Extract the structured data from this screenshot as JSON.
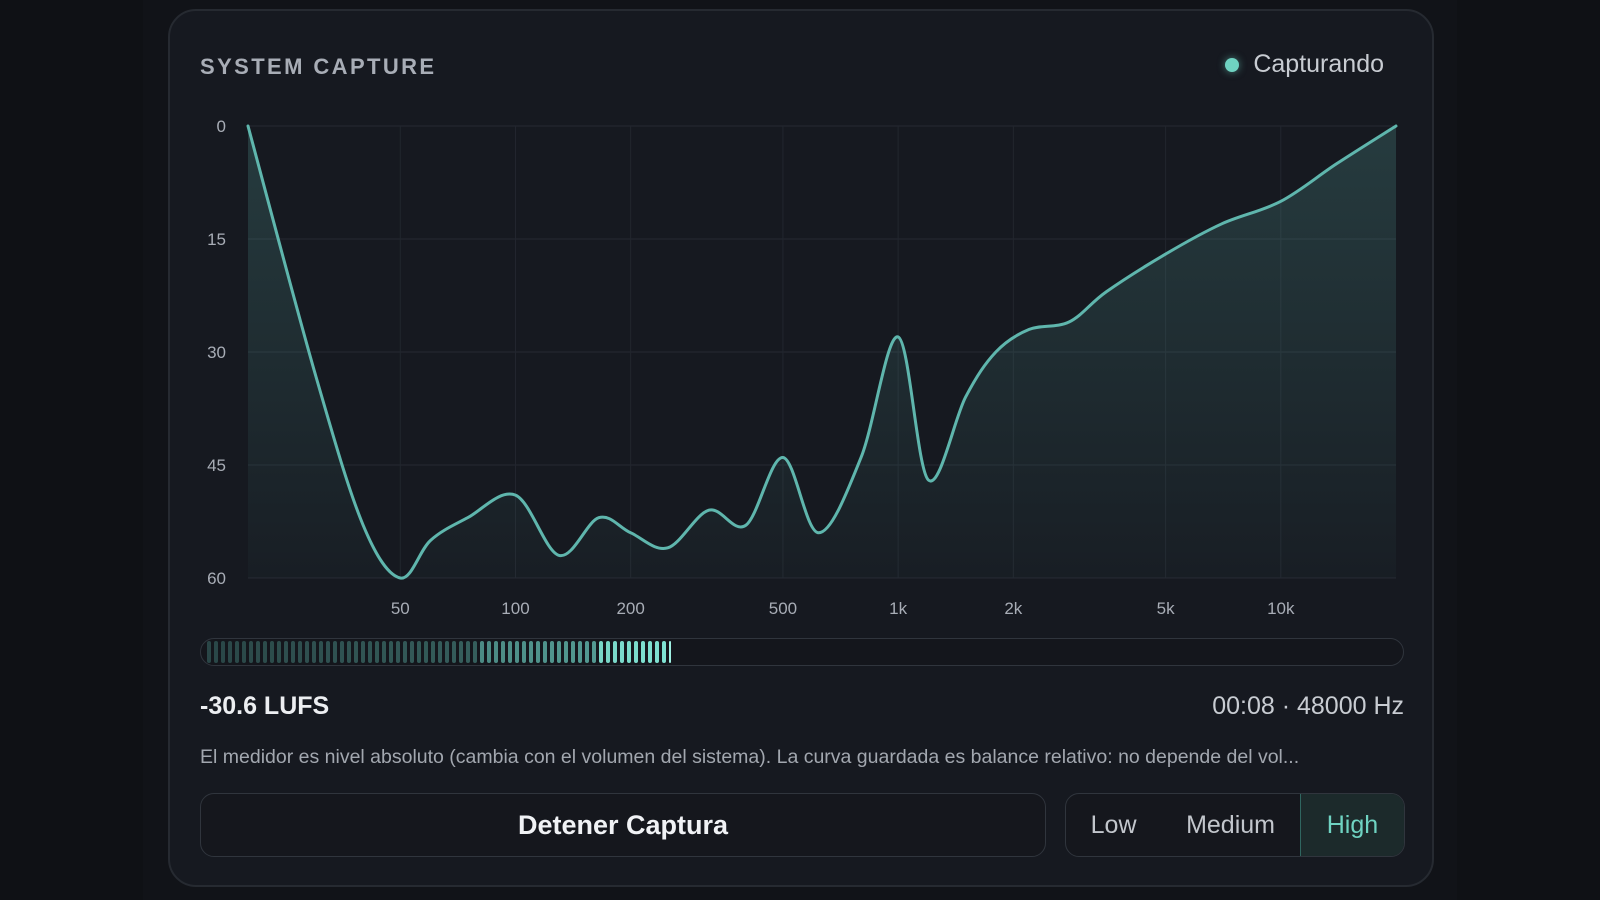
{
  "header": {
    "title": "SYSTEM CAPTURE",
    "status_label": "Capturando"
  },
  "colors": {
    "accent": "#6fd3c2",
    "curve": "#5fb6ad",
    "background": "#161920"
  },
  "chart_data": {
    "type": "area",
    "x_scale": "log",
    "xlim": [
      20,
      20000
    ],
    "ylim": [
      60,
      0
    ],
    "y_ticks": [
      "0",
      "15",
      "30",
      "45",
      "60"
    ],
    "y_tick_values": [
      0,
      15,
      30,
      45,
      60
    ],
    "x_ticks": [
      "50",
      "100",
      "200",
      "500",
      "1k",
      "2k",
      "5k",
      "10k"
    ],
    "x_tick_values": [
      50,
      100,
      200,
      500,
      1000,
      2000,
      5000,
      10000
    ],
    "grid": true,
    "series": [
      {
        "x": [
          20,
          30,
          40,
          50,
          60,
          75,
          100,
          130,
          165,
          200,
          250,
          320,
          400,
          500,
          620,
          800,
          1000,
          1200,
          1500,
          1800,
          2200,
          2800,
          3500,
          5000,
          7000,
          10000,
          14000,
          20000
        ],
        "y": [
          0,
          33,
          53,
          60,
          55,
          52,
          49,
          57,
          52,
          54,
          56,
          51,
          53,
          44,
          54,
          44,
          28,
          47,
          36,
          30,
          27,
          26,
          22,
          17,
          13,
          10,
          5,
          0
        ]
      }
    ]
  },
  "meter": {
    "level": 0.39
  },
  "readout": {
    "loudness": "-30.6 LUFS",
    "time_rate": "00:08 · 48000 Hz"
  },
  "note": "El medidor es nivel absoluto (cambia con el volumen del sistema). La curva guardada es balance relativo: no depende del vol...",
  "controls": {
    "stop_label": "Detener Captura",
    "quality_options": [
      "Low",
      "Medium",
      "High"
    ],
    "quality_selected": "High"
  }
}
